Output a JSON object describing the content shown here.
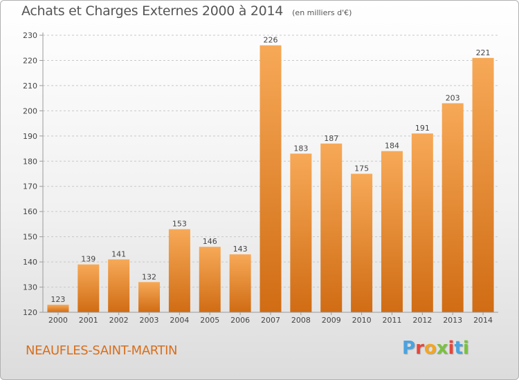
{
  "title": "Achats et Charges Externes 2000 à 2014",
  "unit_note": "(en milliers d'€)",
  "commune": "NEAUFLES-SAINT-MARTIN",
  "logo_text": "Proxiti",
  "logo_colors": [
    "#4aa3df",
    "#e8463a",
    "#f3a623",
    "#7ac142",
    "#e8463a",
    "#4aa3df",
    "#7ac142"
  ],
  "colors": {
    "bar_light": "#f7a957",
    "bar_dark": "#d06c14",
    "axis": "#9a9a9a",
    "grid": "#c8c8c8",
    "text": "#444444",
    "commune": "#d86e1c"
  },
  "chart_data": {
    "type": "bar",
    "title": "Achats et Charges Externes 2000 à 2014",
    "subtitle": "(en milliers d'€)",
    "xlabel": "",
    "ylabel": "",
    "categories": [
      "2000",
      "2001",
      "2002",
      "2003",
      "2004",
      "2005",
      "2006",
      "2007",
      "2008",
      "2009",
      "2010",
      "2011",
      "2012",
      "2013",
      "2014"
    ],
    "values": [
      123,
      139,
      141,
      132,
      153,
      146,
      143,
      226,
      183,
      187,
      175,
      184,
      191,
      203,
      221
    ],
    "ylim": [
      120,
      230
    ],
    "yticks": [
      120,
      130,
      140,
      150,
      160,
      170,
      180,
      190,
      200,
      210,
      220,
      230
    ],
    "grid": "horizontal dashed",
    "legend": "none"
  }
}
